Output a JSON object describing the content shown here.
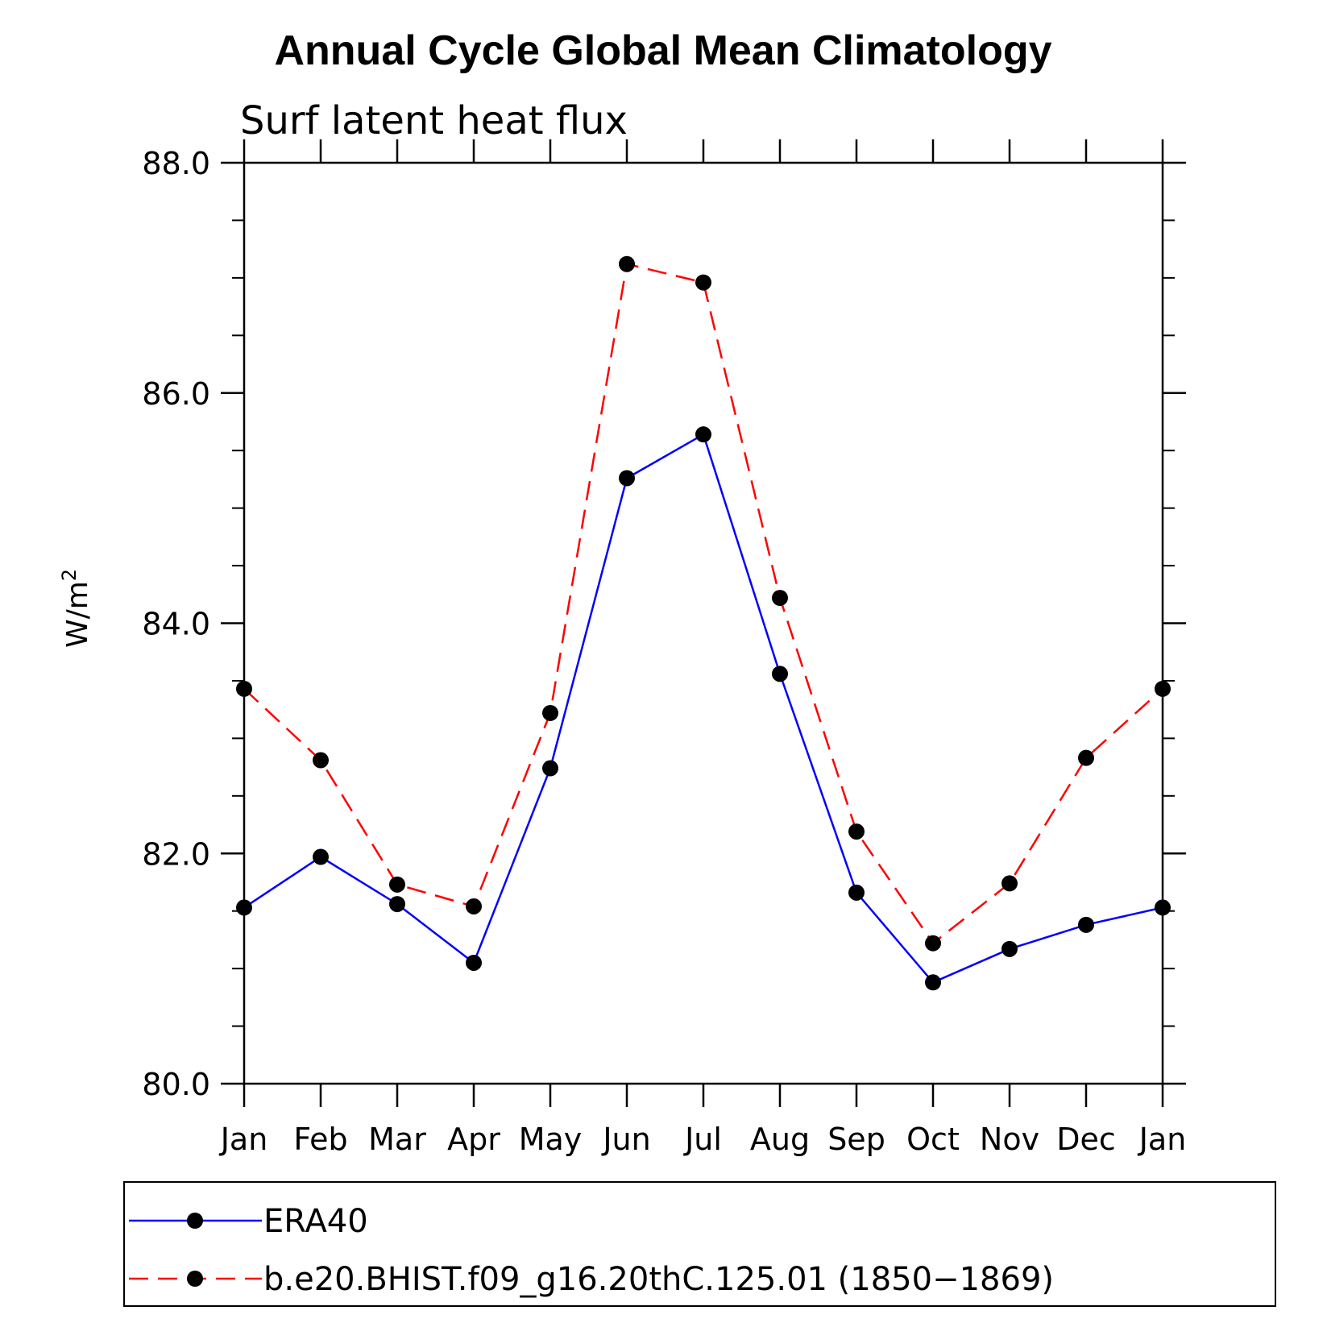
{
  "chart_data": {
    "type": "line",
    "title": "Annual Cycle Global Mean Climatology",
    "subtitle": "Surf latent heat flux",
    "ylabel": "W/m",
    "ylabel_superscript": "2",
    "xlabel": "",
    "categories": [
      "Jan",
      "Feb",
      "Mar",
      "Apr",
      "May",
      "Jun",
      "Jul",
      "Aug",
      "Sep",
      "Oct",
      "Nov",
      "Dec",
      "Jan"
    ],
    "ylim": [
      80.0,
      88.0
    ],
    "yticks": [
      "80.0",
      "82.0",
      "84.0",
      "86.0",
      "88.0"
    ],
    "grid": false,
    "legend_position": "bottom",
    "series": [
      {
        "name": "ERA40",
        "color": "#0000ff",
        "style": "solid",
        "values": [
          81.53,
          81.97,
          81.56,
          81.05,
          82.74,
          85.26,
          85.64,
          83.56,
          81.66,
          80.88,
          81.17,
          81.38,
          81.53
        ]
      },
      {
        "name": "b.e20.BHIST.f09_g16.20thC.125.01 (1850−1869)",
        "color": "#ff0000",
        "style": "dashed",
        "values": [
          83.43,
          82.81,
          81.73,
          81.54,
          83.22,
          87.12,
          86.96,
          84.22,
          82.19,
          81.22,
          81.74,
          82.83,
          83.43
        ]
      }
    ]
  }
}
